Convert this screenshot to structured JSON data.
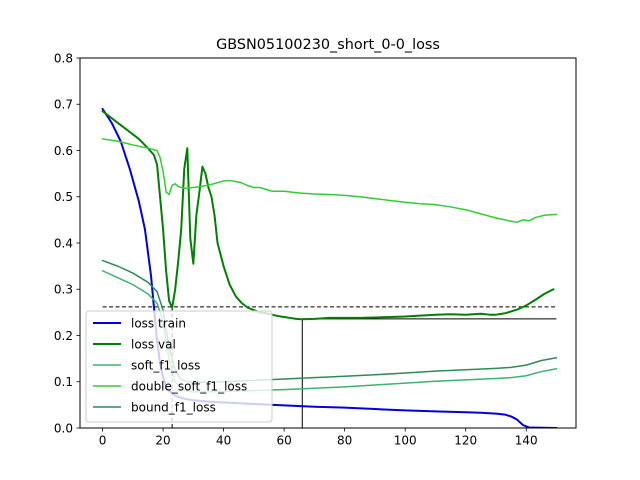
{
  "chart_data": {
    "type": "line",
    "title": "GBSN05100230_short_0-0_loss",
    "xlabel": "",
    "ylabel": "",
    "xlim": [
      -7.45,
      156.45
    ],
    "ylim": [
      0.0,
      0.8
    ],
    "xticks": [
      0,
      20,
      40,
      60,
      80,
      100,
      120,
      140
    ],
    "yticks": [
      0.0,
      0.1,
      0.2,
      0.3,
      0.4,
      0.5,
      0.6,
      0.7,
      0.8
    ],
    "xtick_labels": [
      "0",
      "20",
      "40",
      "60",
      "80",
      "100",
      "120",
      "140"
    ],
    "ytick_labels": [
      "0.0",
      "0.1",
      "0.2",
      "0.3",
      "0.4",
      "0.5",
      "0.6",
      "0.7",
      "0.8"
    ],
    "grid": false,
    "legend_position": "lower-left",
    "series": [
      {
        "name": "loss train",
        "color": "#0000dd",
        "linewidth": 2,
        "x": [
          0,
          3,
          6,
          9,
          12,
          14,
          16,
          17,
          18,
          19,
          20,
          21,
          22,
          23,
          24,
          26,
          28,
          30,
          35,
          40,
          50,
          60,
          70,
          80,
          90,
          100,
          110,
          120,
          125,
          130,
          133,
          135,
          137,
          139,
          141,
          150
        ],
        "y": [
          0.69,
          0.66,
          0.62,
          0.56,
          0.49,
          0.43,
          0.33,
          0.26,
          0.19,
          0.14,
          0.11,
          0.09,
          0.08,
          0.075,
          0.07,
          0.065,
          0.062,
          0.06,
          0.057,
          0.055,
          0.052,
          0.049,
          0.046,
          0.044,
          0.041,
          0.038,
          0.036,
          0.034,
          0.033,
          0.031,
          0.029,
          0.025,
          0.018,
          0.006,
          0.001,
          0.0
        ]
      },
      {
        "name": "loss val",
        "color": "#008000",
        "linewidth": 2,
        "x": [
          0,
          3,
          6,
          9,
          12,
          15,
          17,
          18,
          19,
          20,
          21,
          22,
          23,
          24,
          25,
          26,
          27,
          28,
          29,
          30,
          31,
          32,
          33,
          34,
          35,
          36,
          37,
          38,
          40,
          42,
          44,
          46,
          48,
          50,
          52,
          54,
          56,
          58,
          60,
          62,
          64,
          66,
          70,
          75,
          80,
          85,
          90,
          95,
          100,
          105,
          110,
          115,
          120,
          125,
          128,
          130,
          133,
          135,
          137,
          140,
          143,
          146,
          149
        ],
        "y": [
          0.685,
          0.67,
          0.655,
          0.64,
          0.625,
          0.605,
          0.59,
          0.57,
          0.5,
          0.43,
          0.34,
          0.275,
          0.26,
          0.3,
          0.36,
          0.43,
          0.56,
          0.605,
          0.41,
          0.355,
          0.46,
          0.51,
          0.565,
          0.55,
          0.52,
          0.5,
          0.46,
          0.4,
          0.35,
          0.31,
          0.285,
          0.27,
          0.26,
          0.255,
          0.25,
          0.248,
          0.245,
          0.242,
          0.24,
          0.238,
          0.236,
          0.235,
          0.236,
          0.238,
          0.238,
          0.238,
          0.239,
          0.24,
          0.241,
          0.243,
          0.245,
          0.246,
          0.245,
          0.247,
          0.245,
          0.245,
          0.248,
          0.252,
          0.256,
          0.265,
          0.277,
          0.29,
          0.3
        ]
      },
      {
        "name": "soft_f1_loss",
        "color": "#3cb371",
        "linewidth": 1.5,
        "x": [
          0,
          5,
          10,
          15,
          18,
          20,
          22,
          24,
          26,
          28,
          30,
          35,
          40,
          50,
          60,
          70,
          80,
          90,
          100,
          110,
          120,
          130,
          135,
          140,
          145,
          150
        ],
        "y": [
          0.34,
          0.325,
          0.31,
          0.29,
          0.27,
          0.23,
          0.15,
          0.1,
          0.085,
          0.08,
          0.078,
          0.078,
          0.079,
          0.081,
          0.083,
          0.086,
          0.089,
          0.093,
          0.097,
          0.101,
          0.104,
          0.107,
          0.109,
          0.113,
          0.122,
          0.128
        ]
      },
      {
        "name": "double_soft_f1_loss",
        "color": "#32cd32",
        "linewidth": 1.5,
        "x": [
          0,
          5,
          10,
          15,
          18,
          19,
          20,
          21,
          22,
          23,
          24,
          25,
          27,
          30,
          35,
          40,
          42,
          44,
          46,
          48,
          50,
          52,
          54,
          56,
          60,
          65,
          70,
          75,
          80,
          85,
          90,
          95,
          100,
          105,
          110,
          115,
          120,
          125,
          130,
          133,
          135,
          137,
          139,
          141,
          143,
          146,
          150
        ],
        "y": [
          0.625,
          0.62,
          0.612,
          0.605,
          0.6,
          0.585,
          0.555,
          0.51,
          0.505,
          0.525,
          0.528,
          0.522,
          0.518,
          0.52,
          0.525,
          0.534,
          0.535,
          0.533,
          0.53,
          0.524,
          0.52,
          0.52,
          0.516,
          0.512,
          0.512,
          0.508,
          0.506,
          0.505,
          0.503,
          0.5,
          0.496,
          0.492,
          0.488,
          0.485,
          0.483,
          0.478,
          0.472,
          0.463,
          0.454,
          0.45,
          0.447,
          0.445,
          0.45,
          0.448,
          0.455,
          0.46,
          0.462
        ]
      },
      {
        "name": "bound_f1_loss",
        "color": "#2e8b57",
        "linewidth": 1.5,
        "x": [
          0,
          5,
          10,
          15,
          18,
          20,
          22,
          24,
          26,
          28,
          30,
          35,
          40,
          50,
          60,
          70,
          80,
          90,
          100,
          110,
          120,
          130,
          135,
          140,
          145,
          150
        ],
        "y": [
          0.362,
          0.35,
          0.335,
          0.315,
          0.295,
          0.255,
          0.175,
          0.125,
          0.105,
          0.1,
          0.099,
          0.099,
          0.1,
          0.103,
          0.106,
          0.109,
          0.112,
          0.115,
          0.119,
          0.123,
          0.126,
          0.129,
          0.131,
          0.136,
          0.146,
          0.152
        ]
      }
    ],
    "reference_lines": [
      {
        "kind": "hline",
        "y": 0.262,
        "x_range": [
          0,
          150
        ],
        "style": "dashed",
        "color": "#000000"
      },
      {
        "kind": "hline",
        "y": 0.236,
        "x_range": [
          66,
          150
        ],
        "style": "solid",
        "color": "#000000"
      },
      {
        "kind": "vline",
        "x": 66,
        "y_range": [
          0,
          0.236
        ],
        "style": "solid",
        "color": "#000000"
      },
      {
        "kind": "vline",
        "x": 23,
        "y_range": [
          0,
          0.262
        ],
        "style": "dashed",
        "color": "#000000"
      }
    ]
  }
}
